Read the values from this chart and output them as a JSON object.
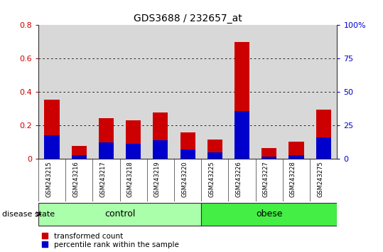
{
  "title": "GDS3688 / 232657_at",
  "samples": [
    "GSM243215",
    "GSM243216",
    "GSM243217",
    "GSM243218",
    "GSM243219",
    "GSM243220",
    "GSM243225",
    "GSM243226",
    "GSM243227",
    "GSM243228",
    "GSM243275"
  ],
  "transformed_count": [
    0.355,
    0.075,
    0.245,
    0.232,
    0.278,
    0.158,
    0.115,
    0.7,
    0.065,
    0.103,
    0.295
  ],
  "percentile_rank_left": [
    0.14,
    0.02,
    0.1,
    0.09,
    0.11,
    0.055,
    0.04,
    0.285,
    0.015,
    0.02,
    0.13
  ],
  "groups": [
    {
      "label": "control",
      "indices": [
        0,
        1,
        2,
        3,
        4,
        5
      ],
      "color": "#AAFFAA",
      "edge_color": "#333333"
    },
    {
      "label": "obese",
      "indices": [
        6,
        7,
        8,
        9,
        10
      ],
      "color": "#44EE44",
      "edge_color": "#333333"
    }
  ],
  "ylim_left": [
    0,
    0.8
  ],
  "ylim_right": [
    0,
    100
  ],
  "yticks_left": [
    0,
    0.2,
    0.4,
    0.6,
    0.8
  ],
  "yticks_right": [
    0,
    25,
    50,
    75,
    100
  ],
  "ylabel_left_labels": [
    "0",
    "0.2",
    "0.4",
    "0.6",
    "0.8"
  ],
  "ylabel_right_labels": [
    "0",
    "25",
    "50",
    "75",
    "100%"
  ],
  "bar_color_red": "#CC0000",
  "bar_color_blue": "#0000CC",
  "bar_width": 0.55,
  "background_color": "#FFFFFF",
  "plot_bg_color": "#D8D8D8",
  "grid_color": "#000000",
  "disease_state_label": "disease state",
  "legend_items": [
    {
      "label": "transformed count",
      "color": "#CC0000"
    },
    {
      "label": "percentile rank within the sample",
      "color": "#0000CC"
    }
  ]
}
